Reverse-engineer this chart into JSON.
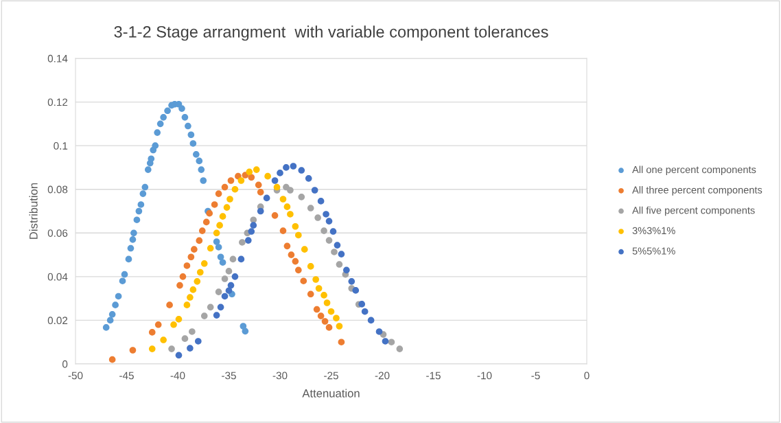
{
  "chart_data": {
    "type": "scatter",
    "title": "3-1-2 Stage arrangment  with variable component tolerances",
    "xlabel": "Attenuation",
    "ylabel": "Distribution",
    "xlim": [
      -50,
      0
    ],
    "xticks": [
      -50,
      -45,
      -40,
      -35,
      -30,
      -25,
      -20,
      -15,
      -10,
      -5,
      0
    ],
    "ylim": [
      0,
      0.14
    ],
    "yticks": [
      0,
      0.02,
      0.04,
      0.06,
      0.08,
      0.1,
      0.12,
      0.14
    ],
    "grid": "y",
    "legend": "right",
    "marker": "circle",
    "series": [
      {
        "name": "All one percent components",
        "color": "#5b9bd5",
        "x": [
          -47.0,
          -46.6,
          -46.4,
          -46.1,
          -45.8,
          -45.4,
          -45.2,
          -44.8,
          -44.6,
          -44.4,
          -44.3,
          -44.0,
          -43.8,
          -43.6,
          -43.4,
          -43.2,
          -42.9,
          -42.7,
          -42.6,
          -42.4,
          -42.2,
          -42.0,
          -41.7,
          -41.4,
          -41.0,
          -40.6,
          -40.3,
          -39.9,
          -39.6,
          -39.3,
          -39.0,
          -38.7,
          -38.5,
          -38.2,
          -37.9,
          -37.7,
          -37.5,
          -37.05,
          -36.2,
          -36.0,
          -35.8,
          -35.6,
          -34.9,
          -34.7,
          -33.6,
          -33.4
        ],
        "values": [
          0.0167,
          0.02,
          0.0227,
          0.027,
          0.031,
          0.038,
          0.041,
          0.048,
          0.053,
          0.057,
          0.06,
          0.066,
          0.07,
          0.073,
          0.078,
          0.081,
          0.089,
          0.092,
          0.094,
          0.098,
          0.1,
          0.106,
          0.11,
          0.113,
          0.116,
          0.1185,
          0.119,
          0.119,
          0.117,
          0.113,
          0.109,
          0.105,
          0.101,
          0.096,
          0.093,
          0.089,
          0.084,
          0.07,
          0.056,
          0.0535,
          0.049,
          0.0465,
          null,
          0.032,
          0.0173,
          0.015
        ]
      },
      {
        "name": "All three percent components",
        "color": "#ed7d31",
        "x": [
          -46.4,
          -44.4,
          -42.5,
          -41.9,
          -40.8,
          -39.8,
          -39.5,
          -39.1,
          -38.7,
          -38.4,
          -37.9,
          -37.6,
          -37.2,
          -36.9,
          -36.4,
          -36.0,
          -35.4,
          -34.8,
          -34.1,
          -33.4,
          -32.8,
          -32.1,
          -31.9,
          -30.5,
          -29.7,
          -29.3,
          -28.9,
          -28.5,
          -28.2,
          -27.7,
          -27.0,
          -26.4,
          -26.0,
          -25.6,
          -25.2,
          -24.0
        ],
        "values": [
          0.002,
          0.0063,
          0.0145,
          0.018,
          0.027,
          0.036,
          0.04,
          0.045,
          0.049,
          0.0525,
          0.0565,
          0.061,
          0.065,
          0.069,
          0.073,
          0.078,
          0.081,
          0.084,
          0.086,
          0.0865,
          0.0855,
          0.082,
          0.0787,
          0.068,
          0.061,
          0.054,
          0.05,
          0.047,
          0.043,
          0.038,
          0.032,
          0.025,
          0.022,
          0.0195,
          0.0167,
          0.01
        ]
      },
      {
        "name": "All five percent components",
        "color": "#a5a5a5",
        "x": [
          -40.6,
          -39.3,
          -38.6,
          -37.4,
          -36.8,
          -36.0,
          -35.4,
          -35.0,
          -34.6,
          -33.7,
          -33.2,
          -32.6,
          -31.9,
          -31.2,
          -30.3,
          -29.4,
          -29.0,
          -27.9,
          -27.0,
          -26.3,
          -25.7,
          -25.2,
          -24.7,
          -24.2,
          -23.6,
          -23.0,
          -22.3,
          -21.0,
          -19.9,
          -19.1,
          -18.3
        ],
        "values": [
          0.0069,
          0.0116,
          0.0148,
          0.022,
          0.026,
          0.033,
          0.039,
          0.0425,
          0.048,
          0.0557,
          0.06,
          0.066,
          0.072,
          null,
          0.0796,
          0.081,
          0.0796,
          0.0765,
          0.0714,
          0.067,
          0.061,
          0.0566,
          0.0513,
          0.0456,
          0.041,
          0.0346,
          0.0273,
          null,
          0.0135,
          0.01,
          0.0069
        ]
      },
      {
        "name": "3%3%1%",
        "color": "#ffc000",
        "x": [
          -42.5,
          -41.4,
          -40.4,
          -39.9,
          -39.1,
          -38.8,
          -38.5,
          -38.1,
          -37.8,
          -37.4,
          -36.8,
          -36.2,
          -35.9,
          -35.6,
          -35.2,
          -34.9,
          -34.4,
          -33.8,
          -33.0,
          -32.3,
          -31.2,
          -30.3,
          -29.7,
          -29.3,
          -29.0,
          -28.5,
          -28.2,
          -27.6,
          -27.0,
          -26.5,
          -26.2,
          -25.7,
          -25.4,
          -25.0,
          -24.5,
          -24.2
        ],
        "values": [
          0.0069,
          0.011,
          0.018,
          0.0205,
          0.027,
          0.0305,
          0.034,
          0.0378,
          0.042,
          0.046,
          0.053,
          0.06,
          0.0635,
          0.0676,
          0.0717,
          0.0755,
          0.08,
          0.084,
          0.088,
          0.089,
          0.086,
          0.081,
          0.0755,
          0.072,
          0.0686,
          0.063,
          0.059,
          0.0525,
          0.0447,
          0.0387,
          0.0346,
          0.0315,
          0.028,
          0.024,
          0.021,
          0.0173
        ]
      },
      {
        "name": "5%5%1%",
        "color": "#4472c4",
        "x": [
          -39.9,
          -38.8,
          -38.0,
          -36.2,
          -35.8,
          -35.4,
          -35.0,
          -34.8,
          -34.4,
          -33.8,
          -33.1,
          -32.8,
          -32.6,
          -31.9,
          -31.3,
          -30.5,
          -30.0,
          -29.4,
          -28.7,
          -27.9,
          -27.2,
          -26.6,
          -26.0,
          -25.5,
          -25.2,
          -24.8,
          -24.4,
          -24.0,
          -23.5,
          -23.0,
          -22.6,
          -22.0,
          -21.7,
          -21.1,
          -20.3,
          -19.7
        ],
        "values": [
          0.004,
          0.0072,
          0.0104,
          0.0223,
          0.026,
          0.031,
          0.0336,
          0.036,
          0.04,
          0.048,
          0.0566,
          0.0607,
          0.0635,
          0.07,
          0.076,
          0.084,
          0.0875,
          0.09,
          0.0906,
          0.0887,
          0.085,
          0.0796,
          0.0746,
          0.0686,
          0.0654,
          0.0607,
          0.0544,
          0.0503,
          0.043,
          0.0378,
          0.0337,
          0.0274,
          0.024,
          0.02,
          0.0148,
          0.0104
        ]
      }
    ]
  }
}
